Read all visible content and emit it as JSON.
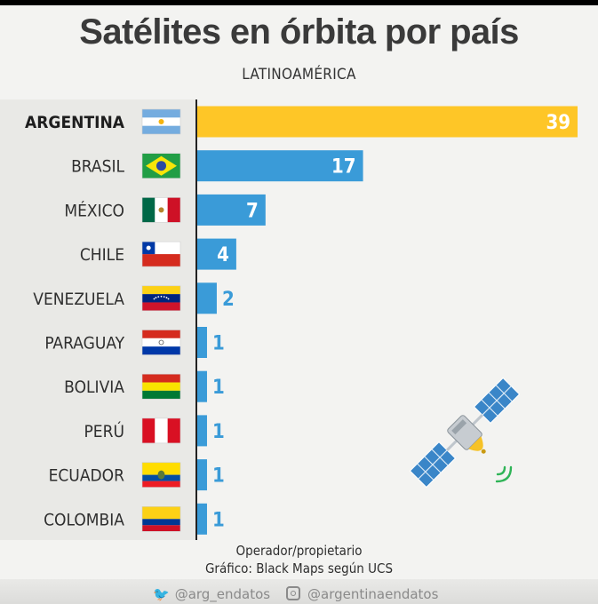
{
  "title": "Satélites en órbita por país",
  "subtitle": "LATINOAMÉRICA",
  "footer": {
    "line1": "Operador/propietario",
    "line2": "Gráfico: Black Maps según UCS",
    "twitter": "@arg_endatos",
    "instagram": "@argentinaendatos"
  },
  "colors": {
    "highlight": "#fec627",
    "bar": "#3a9bd8",
    "label_on_bar": "#ffffff",
    "label_outside": "#3a9bd8"
  },
  "chart_data": {
    "type": "bar",
    "orientation": "horizontal",
    "title": "Satélites en órbita por país",
    "subtitle": "LATINOAMÉRICA",
    "xlabel": "",
    "ylabel": "",
    "xlim": [
      0,
      39
    ],
    "grid": false,
    "categories": [
      "ARGENTINA",
      "BRASIL",
      "MÉXICO",
      "CHILE",
      "VENEZUELA",
      "PARAGUAY",
      "BOLIVIA",
      "PERÚ",
      "ECUADOR",
      "COLOMBIA"
    ],
    "values": [
      39,
      17,
      7,
      4,
      2,
      1,
      1,
      1,
      1,
      1
    ],
    "highlighted_category": "ARGENTINA"
  }
}
